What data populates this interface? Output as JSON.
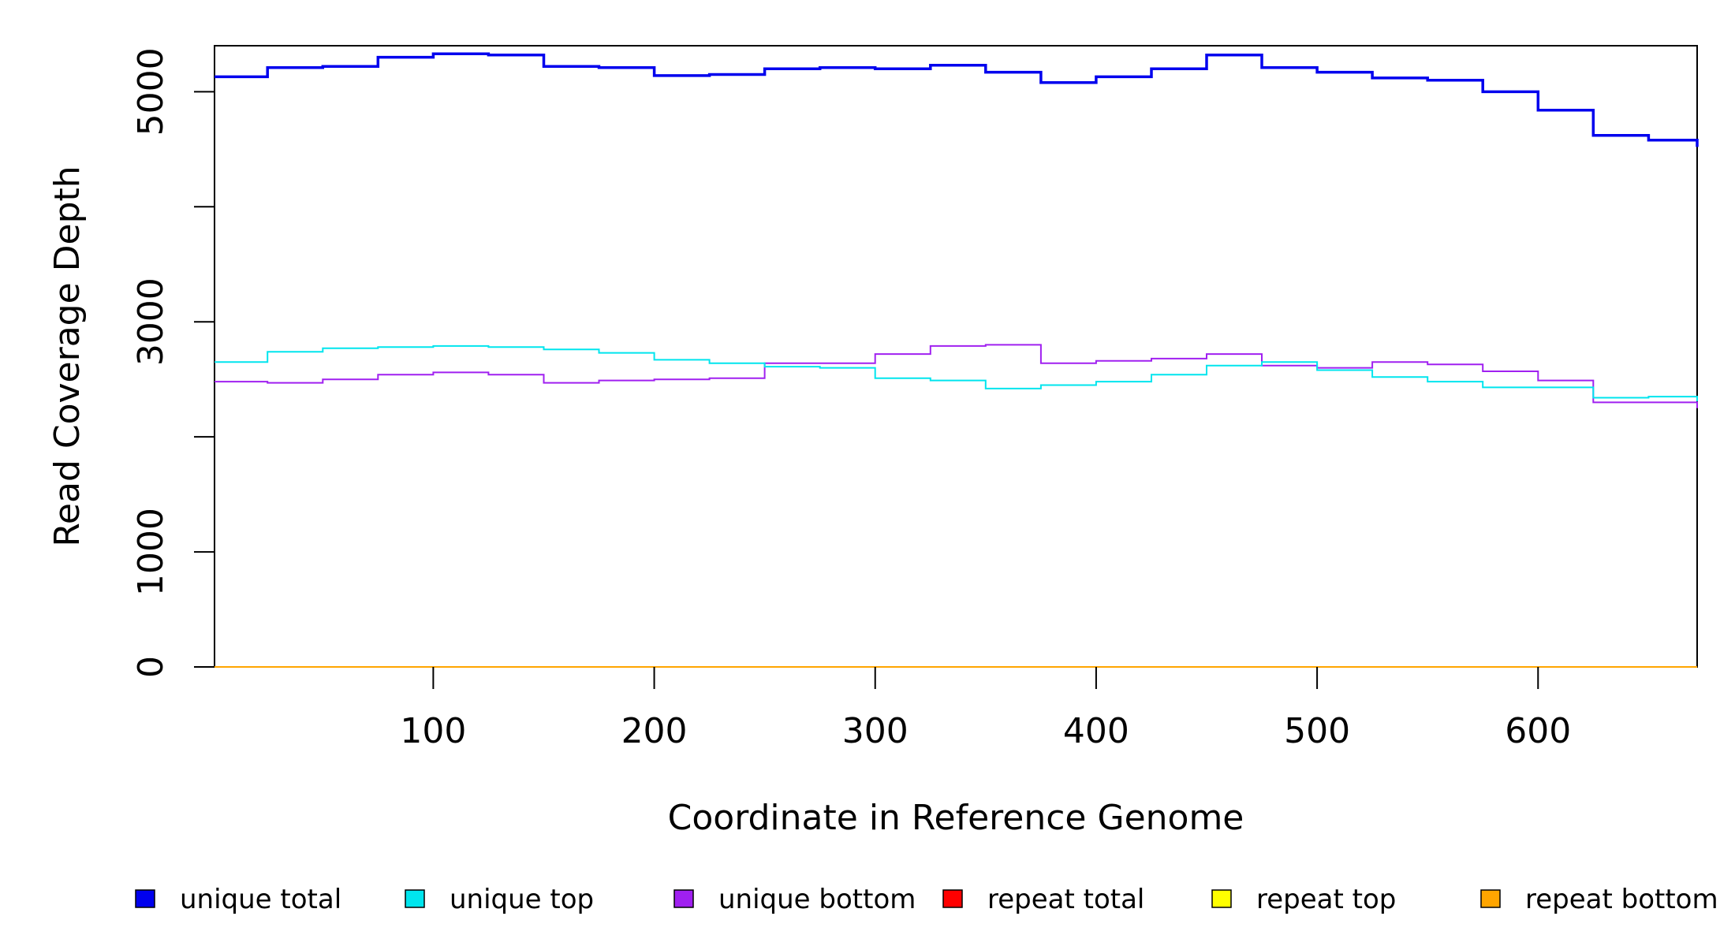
{
  "chart_data": {
    "type": "line",
    "title": "",
    "xlabel": "Coordinate in Reference Genome",
    "ylabel": "Read Coverage Depth",
    "xlim": [
      1,
      672
    ],
    "ylim": [
      0,
      5400
    ],
    "x_ticks": [
      100,
      200,
      300,
      400,
      500,
      600
    ],
    "x_tick_labels": [
      "100",
      "200",
      "300",
      "400",
      "500",
      "600"
    ],
    "y_ticks": [
      0,
      1000,
      2000,
      3000,
      4000,
      5000
    ],
    "y_tick_labels": [
      "0",
      "1000",
      "",
      "3000",
      "",
      "5000"
    ],
    "x": [
      1,
      25,
      50,
      75,
      100,
      125,
      150,
      175,
      200,
      225,
      250,
      275,
      300,
      325,
      350,
      375,
      400,
      425,
      450,
      475,
      500,
      525,
      550,
      575,
      600,
      625,
      650,
      672
    ],
    "series": [
      {
        "name": "unique total",
        "color": "#0000ee",
        "values": [
          5130,
          5210,
          5220,
          5300,
          5330,
          5320,
          5220,
          5210,
          5140,
          5150,
          5200,
          5210,
          5200,
          5230,
          5170,
          5080,
          5130,
          5200,
          5320,
          5210,
          5170,
          5120,
          5100,
          5000,
          4840,
          4620,
          4580,
          4520
        ]
      },
      {
        "name": "unique top",
        "color": "#00e5ee",
        "values": [
          2650,
          2740,
          2770,
          2780,
          2790,
          2780,
          2760,
          2730,
          2670,
          2640,
          2610,
          2600,
          2510,
          2490,
          2420,
          2450,
          2480,
          2540,
          2620,
          2650,
          2580,
          2520,
          2480,
          2430,
          2430,
          2340,
          2350,
          2310
        ]
      },
      {
        "name": "unique bottom",
        "color": "#a020f0",
        "values": [
          2480,
          2470,
          2500,
          2540,
          2560,
          2540,
          2470,
          2490,
          2500,
          2510,
          2640,
          2640,
          2720,
          2790,
          2800,
          2640,
          2660,
          2680,
          2720,
          2620,
          2600,
          2650,
          2630,
          2570,
          2490,
          2300,
          2300,
          2250
        ]
      },
      {
        "name": "repeat total",
        "color": "#ff0000",
        "values": [
          0,
          0,
          0,
          0,
          0,
          0,
          0,
          0,
          0,
          0,
          0,
          0,
          0,
          0,
          0,
          0,
          0,
          0,
          0,
          0,
          0,
          0,
          0,
          0,
          0,
          0,
          0,
          0
        ]
      },
      {
        "name": "repeat top",
        "color": "#ffff00",
        "values": [
          0,
          0,
          0,
          0,
          0,
          0,
          0,
          0,
          0,
          0,
          0,
          0,
          0,
          0,
          0,
          0,
          0,
          0,
          0,
          0,
          0,
          0,
          0,
          0,
          0,
          0,
          0,
          0
        ]
      },
      {
        "name": "repeat bottom",
        "color": "#ffa500",
        "values": [
          0,
          0,
          0,
          0,
          0,
          0,
          0,
          0,
          0,
          0,
          0,
          0,
          0,
          0,
          0,
          0,
          0,
          0,
          0,
          0,
          0,
          0,
          0,
          0,
          0,
          0,
          0,
          0
        ]
      }
    ],
    "legend": {
      "position": "bottom",
      "entries": [
        {
          "label": "unique total",
          "color": "#0000ee"
        },
        {
          "label": "unique top",
          "color": "#00e5ee"
        },
        {
          "label": "unique bottom",
          "color": "#a020f0"
        },
        {
          "label": "repeat total",
          "color": "#ff0000"
        },
        {
          "label": "repeat top",
          "color": "#ffff00"
        },
        {
          "label": "repeat bottom",
          "color": "#ffa500"
        }
      ]
    }
  }
}
